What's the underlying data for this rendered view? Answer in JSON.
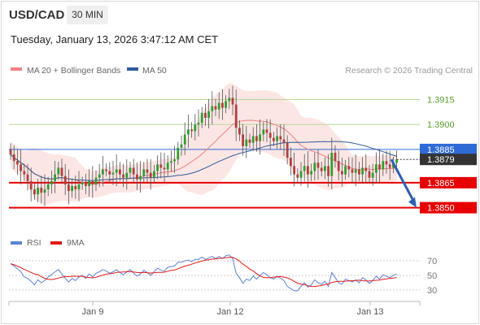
{
  "header": {
    "symbol": "USD/CAD",
    "timeframe": "30 MIN",
    "timestamp": "Tuesday, January 13, 2026 3:47:12 AM CET"
  },
  "chart_data": {
    "type": "candlestick",
    "legend": [
      {
        "name": "MA 20 + Bollinger Bands",
        "color": "#f08080"
      },
      {
        "name": "MA 50",
        "color": "#2e5b9c"
      }
    ],
    "credit": "Research © 2026 Trading Central",
    "x_ticks": [
      "Jan 9",
      "Jan 12",
      "Jan 13"
    ],
    "price_range": [
      1.3842,
      1.3925
    ],
    "levels": [
      {
        "value": 1.3915,
        "label": "1.3915",
        "kind": "target"
      },
      {
        "value": 1.39,
        "label": "1.3900",
        "kind": "target"
      },
      {
        "value": 1.3885,
        "label": "1.3885",
        "kind": "pivot"
      },
      {
        "value": 1.3865,
        "label": "1.3865",
        "kind": "support"
      },
      {
        "value": 1.385,
        "label": "1.3850",
        "kind": "support"
      }
    ],
    "last_price": {
      "value": 1.3879,
      "label": "1.3879"
    },
    "forecast_arrow": {
      "from": 1.3879,
      "to": 1.385,
      "direction": "down"
    },
    "candle_count": 114,
    "closes": [
      1.3882,
      1.3878,
      1.3876,
      1.3872,
      1.387,
      1.3866,
      1.3861,
      1.3858,
      1.3862,
      1.3859,
      1.3861,
      1.3864,
      1.3866,
      1.387,
      1.3874,
      1.3869,
      1.3864,
      1.386,
      1.3863,
      1.3861,
      1.3864,
      1.3865,
      1.3863,
      1.3866,
      1.3864,
      1.3868,
      1.387,
      1.3873,
      1.3872,
      1.387,
      1.3871,
      1.3873,
      1.387,
      1.3868,
      1.3871,
      1.3874,
      1.387,
      1.3867,
      1.3869,
      1.3873,
      1.3871,
      1.3868,
      1.3872,
      1.3876,
      1.3874,
      1.3873,
      1.3877,
      1.3878,
      1.3879,
      1.3886,
      1.3888,
      1.3894,
      1.3897,
      1.3896,
      1.39,
      1.3901,
      1.3907,
      1.3904,
      1.3908,
      1.3911,
      1.3909,
      1.3913,
      1.391,
      1.3914,
      1.3916,
      1.3912,
      1.3898,
      1.3894,
      1.3887,
      1.3891,
      1.3889,
      1.3893,
      1.389,
      1.3894,
      1.3897,
      1.3895,
      1.3892,
      1.389,
      1.3893,
      1.3891,
      1.3889,
      1.388,
      1.3875,
      1.387,
      1.3868,
      1.3872,
      1.3875,
      1.387,
      1.3872,
      1.3877,
      1.3874,
      1.3872,
      1.3875,
      1.3869,
      1.3883,
      1.3878,
      1.3872,
      1.387,
      1.3875,
      1.3873,
      1.3871,
      1.3873,
      1.387,
      1.3874,
      1.3872,
      1.3868,
      1.3871,
      1.3876,
      1.3873,
      1.3878,
      1.3876,
      1.3874,
      1.3877,
      1.3879
    ],
    "rsi": {
      "name": "RSI",
      "color": "#5b84d6",
      "ticks": [
        70,
        50,
        30
      ],
      "values": [
        66,
        63,
        59,
        55,
        48,
        46,
        42,
        37,
        44,
        40,
        43,
        48,
        51,
        55,
        58,
        52,
        46,
        41,
        46,
        43,
        48,
        50,
        46,
        52,
        48,
        53,
        55,
        58,
        56,
        53,
        55,
        58,
        54,
        51,
        55,
        58,
        53,
        49,
        52,
        57,
        54,
        50,
        55,
        60,
        57,
        56,
        61,
        62,
        63,
        68,
        68,
        70,
        71,
        69,
        72,
        72,
        75,
        72,
        74,
        76,
        73,
        76,
        73,
        77,
        78,
        73,
        53,
        47,
        39,
        45,
        43,
        49,
        45,
        50,
        54,
        51,
        47,
        45,
        49,
        46,
        43,
        35,
        32,
        29,
        29,
        35,
        40,
        34,
        37,
        44,
        40,
        38,
        42,
        35,
        54,
        47,
        40,
        38,
        45,
        43,
        41,
        44,
        40,
        47,
        44,
        39,
        43,
        49,
        45,
        51,
        49,
        47,
        50,
        52
      ]
    },
    "rsi_ma": {
      "name": "9MA",
      "color": "#e31a1a"
    }
  }
}
